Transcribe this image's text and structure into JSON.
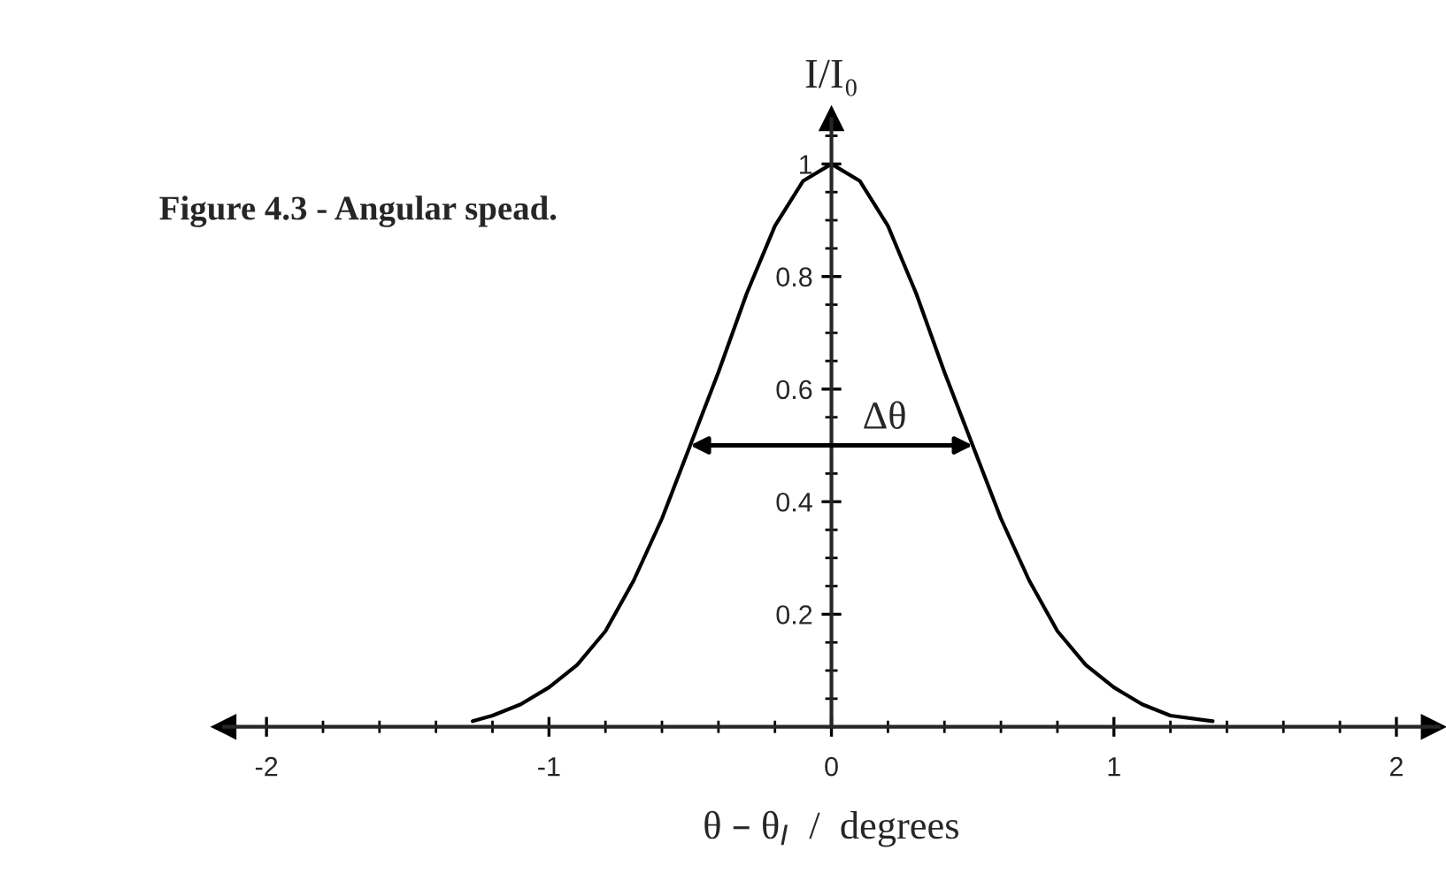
{
  "chart_data": {
    "type": "line",
    "title": "Figure 4.3 - Angular spead.",
    "xlabel": "θ – θ$_{I}$  /  degrees",
    "ylabel": "I/I₀",
    "x": [
      -1.27,
      -1.2,
      -1.1,
      -1.0,
      -0.9,
      -0.8,
      -0.7,
      -0.6,
      -0.5,
      -0.4,
      -0.3,
      -0.2,
      -0.1,
      0,
      0.1,
      0.2,
      0.3,
      0.4,
      0.5,
      0.6,
      0.7,
      0.8,
      0.9,
      1.0,
      1.1,
      1.2,
      1.35
    ],
    "series": [
      {
        "color": "#000000",
        "values": [
          0.01,
          0.02,
          0.04,
          0.07,
          0.11,
          0.17,
          0.26,
          0.37,
          0.5,
          0.63,
          0.77,
          0.89,
          0.97,
          1.0,
          0.97,
          0.89,
          0.77,
          0.63,
          0.5,
          0.37,
          0.26,
          0.17,
          0.11,
          0.07,
          0.04,
          0.02,
          0.01
        ]
      }
    ],
    "annotations": [
      "Δθ"
    ],
    "xlim": [
      -2.15,
      2.15
    ],
    "ylim": [
      0,
      1.08
    ],
    "xticks": [
      -2,
      -1,
      0,
      1,
      2
    ],
    "yticks": [
      0.2,
      0.4,
      0.6,
      0.8,
      1
    ],
    "grid": false,
    "legend": false,
    "marker": "none",
    "line_style": "solid"
  }
}
